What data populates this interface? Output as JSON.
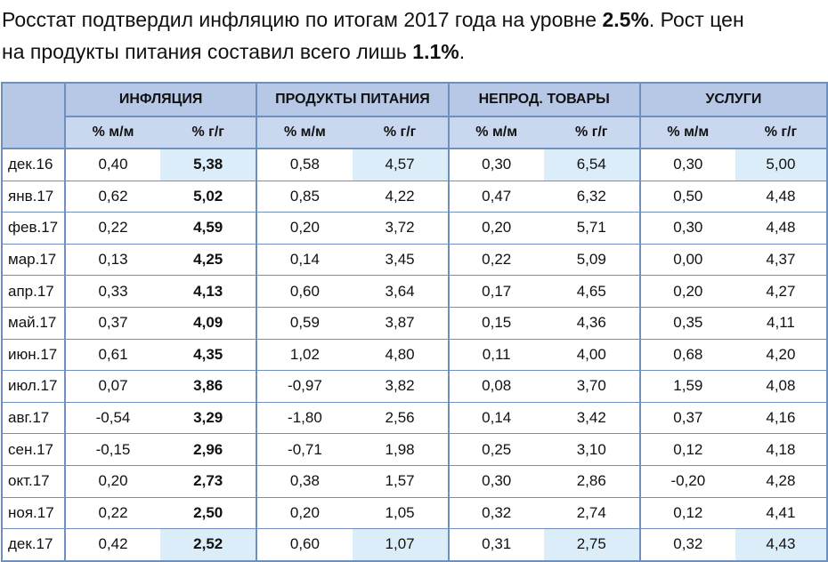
{
  "headline": {
    "line1_pre": "Росстат подтвердил инфляцию по итогам 2017 года на уровне ",
    "line1_bold": "2.5%",
    "line1_post": ". Рост цен",
    "line2_pre": "на продукты питания составил всего лишь ",
    "line2_bold": "1.1%",
    "line2_post": "."
  },
  "table": {
    "groups": [
      "ИНФЛЯЦИЯ",
      "ПРОДУКТЫ ПИТАНИЯ",
      "НЕПРОД. ТОВАРЫ",
      "УСЛУГИ"
    ],
    "subheaders": [
      "% м/м",
      "% г/г",
      "% м/м",
      "% г/г",
      "% м/м",
      "% г/г",
      "% м/м",
      "% г/г"
    ],
    "rows": [
      {
        "month": "дек.16",
        "cells": [
          "0,40",
          "5,38",
          "0,58",
          "4,57",
          "0,30",
          "6,54",
          "0,30",
          "5,00"
        ]
      },
      {
        "month": "янв.17",
        "cells": [
          "0,62",
          "5,02",
          "0,85",
          "4,22",
          "0,47",
          "6,32",
          "0,50",
          "4,48"
        ]
      },
      {
        "month": "фев.17",
        "cells": [
          "0,22",
          "4,59",
          "0,20",
          "3,72",
          "0,20",
          "5,71",
          "0,30",
          "4,48"
        ]
      },
      {
        "month": "мар.17",
        "cells": [
          "0,13",
          "4,25",
          "0,14",
          "3,45",
          "0,22",
          "5,09",
          "0,00",
          "4,37"
        ]
      },
      {
        "month": "апр.17",
        "cells": [
          "0,33",
          "4,13",
          "0,60",
          "3,64",
          "0,17",
          "4,65",
          "0,20",
          "4,27"
        ]
      },
      {
        "month": "май.17",
        "cells": [
          "0,37",
          "4,09",
          "0,59",
          "3,87",
          "0,15",
          "4,36",
          "0,35",
          "4,11"
        ]
      },
      {
        "month": "июн.17",
        "cells": [
          "0,61",
          "4,35",
          "1,02",
          "4,80",
          "0,11",
          "4,00",
          "0,68",
          "4,20"
        ]
      },
      {
        "month": "июл.17",
        "cells": [
          "0,07",
          "3,86",
          "-0,97",
          "3,82",
          "0,08",
          "3,70",
          "1,59",
          "4,08"
        ]
      },
      {
        "month": "авг.17",
        "cells": [
          "-0,54",
          "3,29",
          "-1,80",
          "2,56",
          "0,14",
          "3,42",
          "0,37",
          "4,16"
        ]
      },
      {
        "month": "сен.17",
        "cells": [
          "-0,15",
          "2,96",
          "-0,71",
          "1,98",
          "0,25",
          "3,10",
          "0,12",
          "4,18"
        ]
      },
      {
        "month": "окт.17",
        "cells": [
          "0,20",
          "2,73",
          "0,38",
          "1,57",
          "0,30",
          "2,86",
          "-0,20",
          "4,28"
        ]
      },
      {
        "month": "ноя.17",
        "cells": [
          "0,22",
          "2,50",
          "0,20",
          "1,05",
          "0,32",
          "2,74",
          "0,12",
          "4,41"
        ]
      },
      {
        "month": "дек.17",
        "cells": [
          "0,42",
          "2,52",
          "0,60",
          "1,07",
          "0,31",
          "2,75",
          "0,32",
          "4,43"
        ]
      }
    ]
  },
  "colors": {
    "header_fill": "#b6c8e6",
    "subheader_fill": "#c9d8ee",
    "highlight_fill": "#dcedfa",
    "border": "#6f8fbf"
  }
}
